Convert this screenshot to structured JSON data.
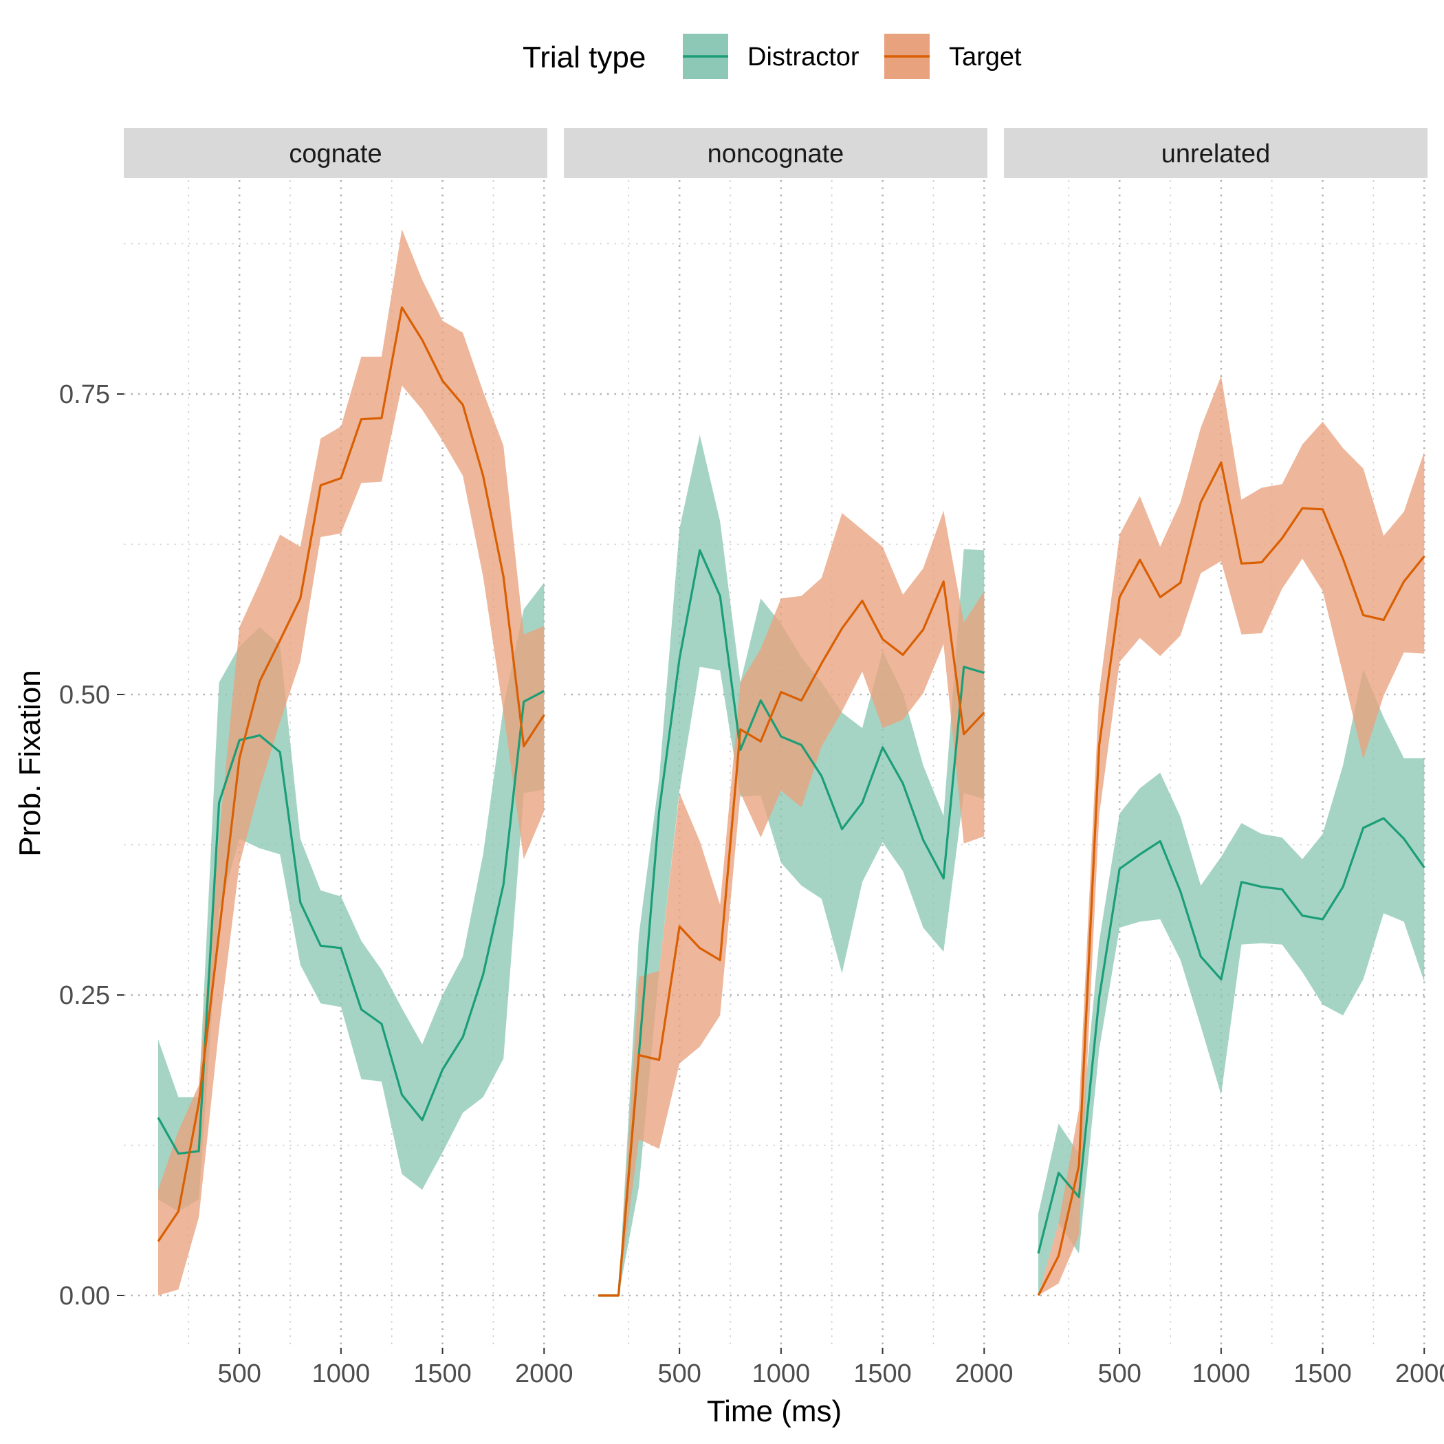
{
  "chart_data": {
    "type": "line",
    "xlabel": "Time (ms)",
    "ylabel": "Prob. Fixation",
    "xlim": [
      200,
      2000
    ],
    "ylim": [
      -0.04,
      0.93
    ],
    "x_ticks": [
      500,
      1000,
      1500,
      2000
    ],
    "x_tick_labels": [
      "500",
      "1000",
      "1500",
      "2000"
    ],
    "y_ticks": [
      0,
      0.25,
      0.5,
      0.75
    ],
    "y_tick_labels": [
      "0.00",
      "0.25",
      "0.50",
      "0.75"
    ],
    "grid": true,
    "legend": {
      "title": "Trial type",
      "position": "top",
      "entries": [
        {
          "name": "Distractor",
          "color": "#1b9e77",
          "fill": "#8cc8b5"
        },
        {
          "name": "Target",
          "color": "#d95f02",
          "fill": "#e9a27e"
        }
      ]
    },
    "panels": [
      {
        "name": "cognate",
        "series": [
          {
            "name": "Distractor",
            "x": [
              100,
              200,
              300,
              400,
              500,
              600,
              700,
              800,
              900,
              1000,
              1100,
              1200,
              1300,
              1400,
              1500,
              1600,
              1700,
              1800,
              1900,
              2000
            ],
            "y": [
              0.148,
              0.118,
              0.12,
              0.41,
              0.462,
              0.466,
              0.452,
              0.327,
              0.291,
              0.289,
              0.238,
              0.226,
              0.167,
              0.146,
              0.188,
              0.215,
              0.267,
              0.342,
              0.494,
              0.503
            ],
            "lower": [
              0.08,
              0.07,
              0.08,
              0.32,
              0.38,
              0.372,
              0.367,
              0.275,
              0.243,
              0.24,
              0.18,
              0.178,
              0.101,
              0.088,
              0.119,
              0.152,
              0.165,
              0.197,
              0.418,
              0.421
            ],
            "upper": [
              0.213,
              0.165,
              0.165,
              0.51,
              0.54,
              0.556,
              0.541,
              0.38,
              0.337,
              0.332,
              0.295,
              0.271,
              0.239,
              0.209,
              0.25,
              0.282,
              0.367,
              0.49,
              0.571,
              0.593
            ]
          },
          {
            "name": "Target",
            "x": [
              100,
              200,
              300,
              400,
              500,
              600,
              700,
              800,
              900,
              1000,
              1100,
              1200,
              1300,
              1400,
              1500,
              1600,
              1700,
              1800,
              1900,
              2000
            ],
            "y": [
              0.045,
              0.07,
              0.16,
              0.302,
              0.447,
              0.511,
              0.545,
              0.58,
              0.674,
              0.68,
              0.729,
              0.73,
              0.822,
              0.795,
              0.761,
              0.741,
              0.682,
              0.598,
              0.457,
              0.483
            ],
            "lower": [
              0.0,
              0.005,
              0.065,
              0.222,
              0.359,
              0.422,
              0.477,
              0.528,
              0.631,
              0.634,
              0.676,
              0.677,
              0.757,
              0.737,
              0.711,
              0.682,
              0.598,
              0.485,
              0.363,
              0.403
            ],
            "upper": [
              0.088,
              0.137,
              0.175,
              0.382,
              0.556,
              0.593,
              0.633,
              0.623,
              0.713,
              0.723,
              0.781,
              0.781,
              0.887,
              0.845,
              0.811,
              0.801,
              0.752,
              0.707,
              0.55,
              0.557
            ]
          }
        ]
      },
      {
        "name": "noncognate",
        "series": [
          {
            "name": "Distractor",
            "x": [
              100,
              200,
              300,
              400,
              500,
              600,
              700,
              800,
              900,
              1000,
              1100,
              1200,
              1300,
              1400,
              1500,
              1600,
              1700,
              1800,
              1900,
              2000
            ],
            "y": [
              0.0,
              0.0,
              0.2,
              0.403,
              0.53,
              0.62,
              0.582,
              0.454,
              0.495,
              0.465,
              0.458,
              0.432,
              0.388,
              0.41,
              0.456,
              0.426,
              0.379,
              0.347,
              0.523,
              0.518
            ],
            "lower": [
              0.0,
              0.0,
              0.09,
              0.27,
              0.42,
              0.523,
              0.52,
              0.415,
              0.416,
              0.36,
              0.341,
              0.33,
              0.268,
              0.344,
              0.377,
              0.353,
              0.306,
              0.286,
              0.418,
              0.413
            ],
            "upper": [
              0.0,
              0.0,
              0.3,
              0.43,
              0.638,
              0.716,
              0.644,
              0.51,
              0.58,
              0.559,
              0.531,
              0.51,
              0.485,
              0.472,
              0.536,
              0.501,
              0.441,
              0.399,
              0.621,
              0.62
            ]
          },
          {
            "name": "Target",
            "x": [
              100,
              200,
              300,
              400,
              500,
              600,
              700,
              800,
              900,
              1000,
              1100,
              1200,
              1300,
              1400,
              1500,
              1600,
              1700,
              1800,
              1900,
              2000
            ],
            "y": [
              0.0,
              0.0,
              0.2,
              0.196,
              0.307,
              0.289,
              0.279,
              0.471,
              0.461,
              0.502,
              0.495,
              0.526,
              0.555,
              0.578,
              0.546,
              0.533,
              0.554,
              0.594,
              0.467,
              0.485
            ],
            "lower": [
              0.0,
              0.0,
              0.13,
              0.122,
              0.193,
              0.207,
              0.233,
              0.418,
              0.381,
              0.42,
              0.406,
              0.457,
              0.486,
              0.519,
              0.472,
              0.479,
              0.501,
              0.542,
              0.376,
              0.382
            ],
            "upper": [
              0.0,
              0.0,
              0.265,
              0.27,
              0.418,
              0.378,
              0.325,
              0.51,
              0.538,
              0.58,
              0.582,
              0.597,
              0.651,
              0.637,
              0.623,
              0.583,
              0.605,
              0.653,
              0.56,
              0.586
            ]
          }
        ]
      },
      {
        "name": "unrelated",
        "series": [
          {
            "name": "Distractor",
            "x": [
              100,
              200,
              300,
              400,
              500,
              600,
              700,
              800,
              900,
              1000,
              1100,
              1200,
              1300,
              1400,
              1500,
              1600,
              1700,
              1800,
              1900,
              2000
            ],
            "y": [
              0.035,
              0.102,
              0.082,
              0.248,
              0.355,
              0.367,
              0.378,
              0.336,
              0.282,
              0.263,
              0.344,
              0.34,
              0.338,
              0.316,
              0.313,
              0.34,
              0.389,
              0.397,
              0.38,
              0.356
            ],
            "lower": [
              0.0,
              0.06,
              0.035,
              0.205,
              0.306,
              0.311,
              0.313,
              0.279,
              0.224,
              0.167,
              0.292,
              0.293,
              0.292,
              0.269,
              0.242,
              0.233,
              0.263,
              0.318,
              0.311,
              0.261
            ],
            "upper": [
              0.068,
              0.143,
              0.118,
              0.295,
              0.401,
              0.422,
              0.435,
              0.398,
              0.341,
              0.365,
              0.393,
              0.384,
              0.381,
              0.363,
              0.384,
              0.441,
              0.521,
              0.481,
              0.447,
              0.447
            ]
          },
          {
            "name": "Target",
            "x": [
              100,
              200,
              300,
              400,
              500,
              600,
              700,
              800,
              900,
              1000,
              1100,
              1200,
              1300,
              1400,
              1500,
              1600,
              1700,
              1800,
              1900,
              2000
            ],
            "y": [
              0.0,
              0.033,
              0.108,
              0.458,
              0.581,
              0.612,
              0.581,
              0.593,
              0.66,
              0.693,
              0.609,
              0.61,
              0.63,
              0.655,
              0.654,
              0.613,
              0.566,
              0.562,
              0.594,
              0.615
            ],
            "lower": [
              0.0,
              0.01,
              0.05,
              0.4,
              0.527,
              0.547,
              0.532,
              0.549,
              0.601,
              0.611,
              0.55,
              0.551,
              0.588,
              0.613,
              0.586,
              0.517,
              0.446,
              0.499,
              0.535,
              0.534
            ],
            "upper": [
              0.0,
              0.06,
              0.155,
              0.502,
              0.633,
              0.665,
              0.623,
              0.66,
              0.722,
              0.765,
              0.662,
              0.672,
              0.675,
              0.708,
              0.727,
              0.705,
              0.688,
              0.632,
              0.652,
              0.702
            ]
          }
        ]
      }
    ]
  }
}
